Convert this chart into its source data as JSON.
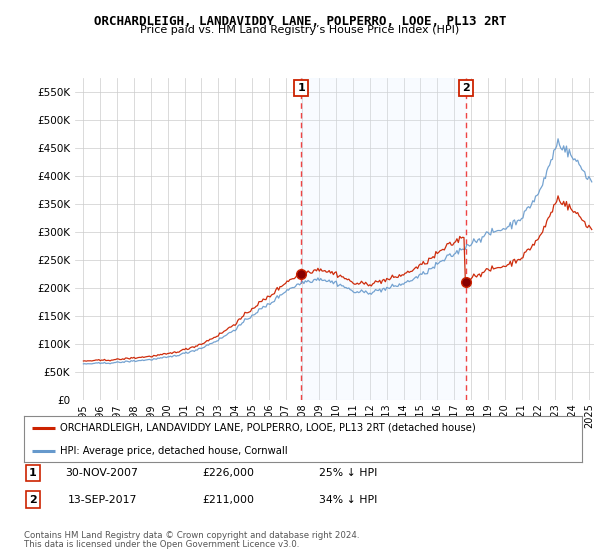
{
  "title": "ORCHARDLEIGH, LANDAVIDDY LANE, POLPERRO, LOOE, PL13 2RT",
  "subtitle": "Price paid vs. HM Land Registry’s House Price Index (HPI)",
  "legend_label_red": "ORCHARDLEIGH, LANDAVIDDY LANE, POLPERRO, LOOE, PL13 2RT (detached house)",
  "legend_label_blue": "HPI: Average price, detached house, Cornwall",
  "footer1": "Contains HM Land Registry data © Crown copyright and database right 2024.",
  "footer2": "This data is licensed under the Open Government Licence v3.0.",
  "table_rows": [
    {
      "num": "1",
      "date": "30-NOV-2007",
      "price": "£226,000",
      "hpi": "25% ↓ HPI"
    },
    {
      "num": "2",
      "date": "13-SEP-2017",
      "price": "£211,000",
      "hpi": "34% ↓ HPI"
    }
  ],
  "sale1_x": 2007.917,
  "sale1_y": 226000,
  "sale2_x": 2017.708,
  "sale2_y": 211000,
  "ylim": [
    0,
    575000
  ],
  "xlim": [
    1994.5,
    2025.3
  ],
  "yticks": [
    0,
    50000,
    100000,
    150000,
    200000,
    250000,
    300000,
    350000,
    400000,
    450000,
    500000,
    550000
  ],
  "ytick_labels": [
    "£0",
    "£50K",
    "£100K",
    "£150K",
    "£200K",
    "£250K",
    "£300K",
    "£350K",
    "£400K",
    "£450K",
    "£500K",
    "£550K"
  ],
  "bg_color": "#ffffff",
  "grid_color": "#cccccc",
  "red_color": "#cc2200",
  "blue_color": "#6699cc",
  "fill_color": "#ddeeff",
  "vline_color": "#ee4444"
}
